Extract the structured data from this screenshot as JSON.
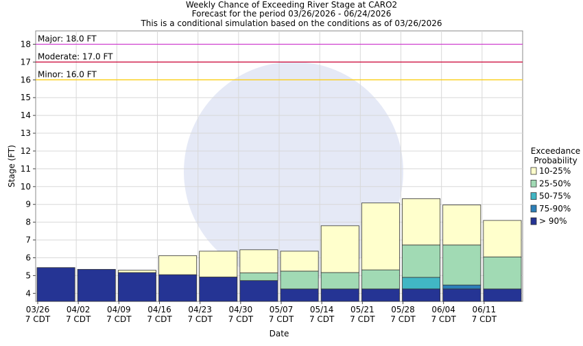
{
  "chart_data": {
    "type": "floating_bar",
    "title": [
      "Weekly Chance of Exceeding River Stage at CARO2",
      "Forecast for the period 03/26/2026 - 06/24/2026",
      "This is a conditional simulation based on the conditions as of 03/26/2026"
    ],
    "xlabel": "Date",
    "ylabel": "Stage (FT)",
    "categories": [
      [
        "03/26",
        "7 CDT"
      ],
      [
        "04/02",
        "7 CDT"
      ],
      [
        "04/09",
        "7 CDT"
      ],
      [
        "04/16",
        "7 CDT"
      ],
      [
        "04/23",
        "7 CDT"
      ],
      [
        "04/30",
        "7 CDT"
      ],
      [
        "05/07",
        "7 CDT"
      ],
      [
        "05/14",
        "7 CDT"
      ],
      [
        "05/21",
        "7 CDT"
      ],
      [
        "05/28",
        "7 CDT"
      ],
      [
        "06/04",
        "7 CDT"
      ],
      [
        "06/11",
        "7 CDT"
      ]
    ],
    "series": [
      {
        "name": "> 90%",
        "color": "#253494",
        "values": [
          5.45,
          5.35,
          5.17,
          5.05,
          4.92,
          4.72,
          4.25,
          4.25,
          4.25,
          4.25,
          4.25,
          4.25
        ]
      },
      {
        "name": "75-90%",
        "color": "#2c7fb8",
        "values": [
          5.45,
          5.35,
          5.17,
          5.05,
          4.92,
          4.72,
          4.25,
          4.25,
          4.25,
          4.25,
          4.47,
          4.25
        ]
      },
      {
        "name": "50-75%",
        "color": "#41b6c4",
        "values": [
          5.45,
          5.35,
          5.17,
          5.05,
          4.92,
          4.72,
          4.25,
          4.25,
          4.25,
          4.9,
          4.47,
          4.25
        ]
      },
      {
        "name": "25-50%",
        "color": "#a1dab4",
        "values": [
          5.45,
          5.35,
          5.17,
          5.05,
          4.92,
          5.15,
          5.25,
          5.17,
          5.32,
          6.72,
          6.72,
          6.05
        ]
      },
      {
        "name": "10-25%",
        "color": "#ffffcc",
        "values": [
          5.45,
          5.35,
          5.3,
          6.12,
          6.37,
          6.45,
          6.37,
          7.8,
          9.08,
          9.32,
          8.97,
          8.1
        ]
      }
    ],
    "legend_title": [
      "Exceedance",
      "Probability"
    ],
    "thresholds": [
      {
        "label": "Major: 18.0 FT",
        "value": 18,
        "color": "#cc33cc"
      },
      {
        "label": "Moderate: 17.0 FT",
        "value": 17,
        "color": "#cc0033"
      },
      {
        "label": "Minor: 16.0 FT",
        "value": 16,
        "color": "#ffcc00"
      }
    ],
    "ylim": [
      3.55,
      18.75
    ],
    "yticks": [
      4,
      5,
      6,
      7,
      8,
      9,
      10,
      11,
      12,
      13,
      14,
      15,
      16,
      17,
      18
    ],
    "grid": true
  }
}
